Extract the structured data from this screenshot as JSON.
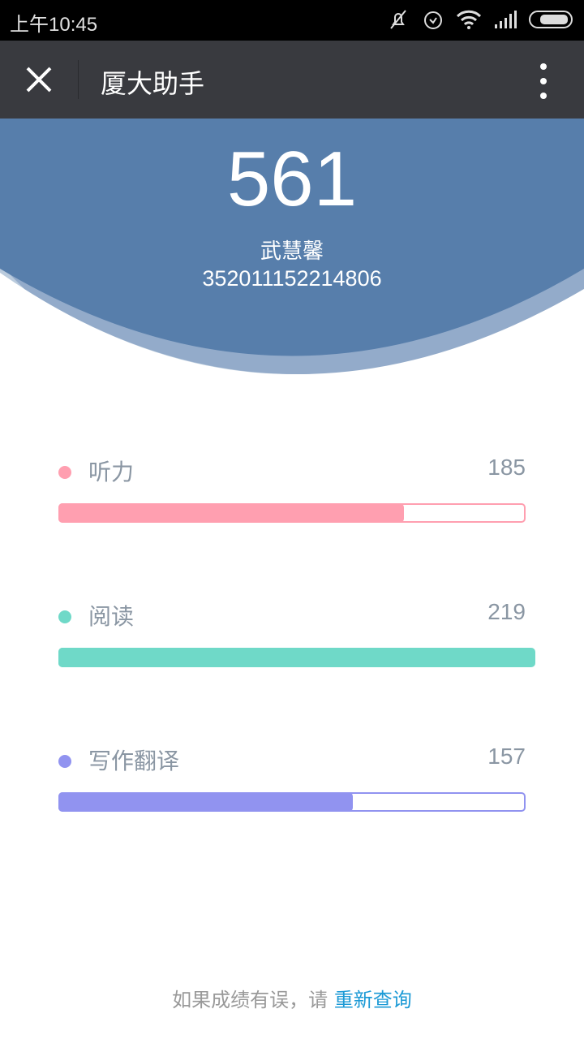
{
  "status_bar": {
    "time": "上午10:45",
    "icons": [
      "mute-icon",
      "alarm-icon",
      "wifi-icon",
      "signal-icon",
      "battery-icon"
    ]
  },
  "nav": {
    "title": "厦大助手",
    "close_icon": "close-icon",
    "more_icon": "more-vertical-icon"
  },
  "result": {
    "total": "561",
    "name": "武慧馨",
    "id": "352011152214806"
  },
  "colors": {
    "header": "#577eab",
    "listening": "#ff9fb0",
    "reading": "#6fd9c8",
    "writing": "#9193f0",
    "link": "#1c9ad6"
  },
  "sections": [
    {
      "label": "听力",
      "score": "185",
      "fill": 0.74
    },
    {
      "label": "阅读",
      "score": "219",
      "fill": 1.02
    },
    {
      "label": "写作翻译",
      "score": "157",
      "fill": 0.63
    }
  ],
  "footer": {
    "text": "如果成绩有误，请 ",
    "link": "重新查询"
  }
}
